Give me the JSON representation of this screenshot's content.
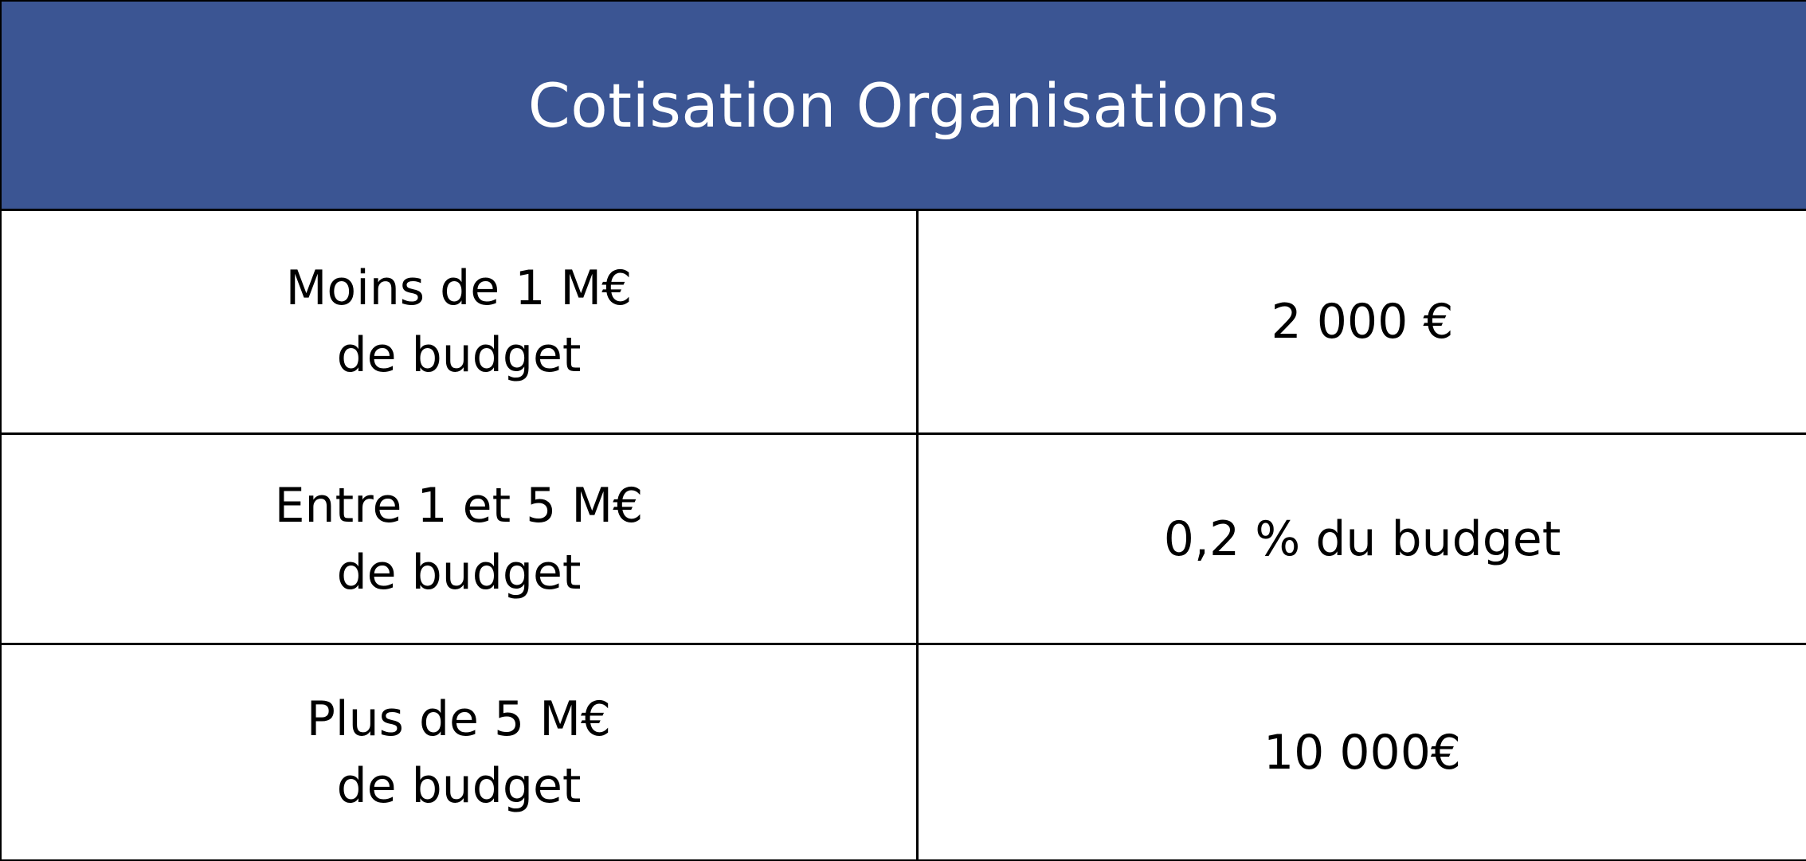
{
  "table": {
    "title": "Cotisation Organisations",
    "colors": {
      "header_bg": "#3b5593",
      "header_text": "#ffffff",
      "border": "#000000"
    },
    "rows": [
      {
        "condition_line1": "Moins de 1 M€",
        "condition_line2": "de budget",
        "amount": "2 000 €"
      },
      {
        "condition_line1": "Entre 1 et 5 M€",
        "condition_line2": "de budget",
        "amount": "0,2 % du budget"
      },
      {
        "condition_line1": "Plus de 5 M€",
        "condition_line2": "de budget",
        "amount": "10 000€"
      }
    ]
  }
}
